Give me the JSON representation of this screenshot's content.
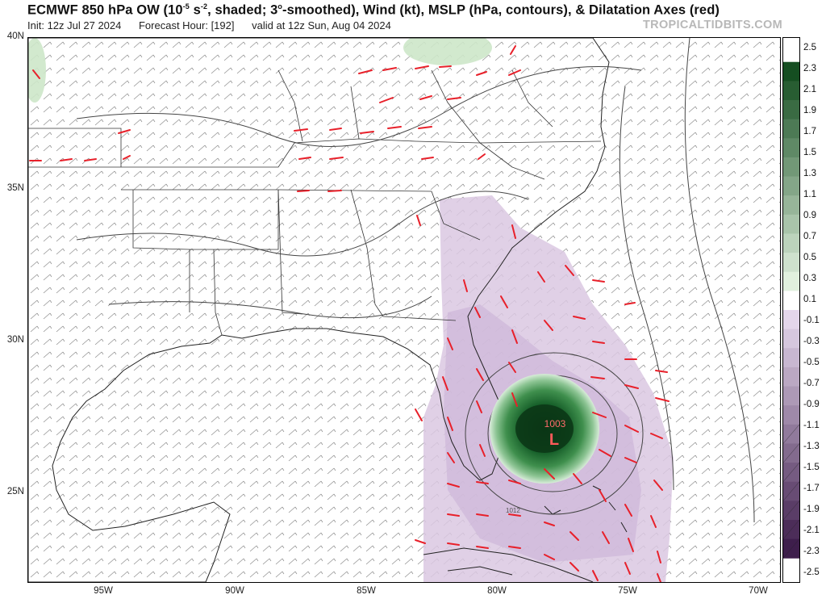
{
  "header": {
    "title_parts": [
      "ECMWF 850 hPa OW (10",
      "-5",
      " s",
      "-2",
      ", shaded; 3",
      "o",
      "-smoothed), Wind (kt), MSLP (hPa, contours), & Dilatation Axes (red)"
    ],
    "init": "Init: 12z Jul 27 2024",
    "forecast": "Forecast Hour: [192]",
    "valid": "valid at 12z Sun, Aug 04 2024",
    "credit": "TROPICALTIDBITS.COM"
  },
  "map": {
    "lat_labels": [
      "40N",
      "35N",
      "30N",
      "25N"
    ],
    "lon_labels": [
      "95W",
      "90W",
      "85W",
      "80W",
      "75W",
      "70W"
    ],
    "low_marker": "L",
    "low_pressure": "1003",
    "isobar_label": "1012"
  },
  "colorbar": {
    "labels": [
      "2.5",
      "2.3",
      "2.1",
      "1.9",
      "1.7",
      "1.5",
      "1.3",
      "1.1",
      "0.9",
      "0.7",
      "0.5",
      "0.3",
      "0.1",
      "-0.1",
      "-0.3",
      "-0.5",
      "-0.7",
      "-0.9",
      "-1.1",
      "-1.3",
      "-1.5",
      "-1.7",
      "-1.9",
      "-2.1",
      "-2.3",
      "-2.5"
    ],
    "positive_color": "#1b5e20",
    "negative_color": "#4a2a5a",
    "neutral_color": "#ffffff"
  },
  "colors": {
    "axes_red": "#e8202a",
    "ow_positive_dark": "#0d4d1e",
    "ow_negative_light": "#dccbe3",
    "coast": "#222222"
  }
}
